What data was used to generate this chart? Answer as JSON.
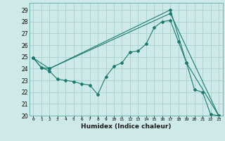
{
  "title": "",
  "xlabel": "Humidex (Indice chaleur)",
  "background_color": "#ceeae8",
  "grid_color": "#aed4d2",
  "line_color": "#1a7a6e",
  "xlim": [
    -0.5,
    23.5
  ],
  "ylim": [
    20,
    29.6
  ],
  "yticks": [
    20,
    21,
    22,
    23,
    24,
    25,
    26,
    27,
    28,
    29
  ],
  "xticks": [
    0,
    1,
    2,
    3,
    4,
    5,
    6,
    7,
    8,
    9,
    10,
    11,
    12,
    13,
    14,
    15,
    16,
    17,
    18,
    19,
    20,
    21,
    22,
    23
  ],
  "series1_x": [
    0,
    1,
    2,
    3,
    4,
    5,
    6,
    7,
    8,
    9,
    10,
    11,
    12,
    13,
    14,
    15,
    16,
    17,
    18,
    19,
    20,
    21,
    22,
    23
  ],
  "series1_y": [
    24.9,
    24.1,
    23.8,
    23.1,
    23.0,
    22.9,
    22.7,
    22.6,
    21.8,
    23.3,
    24.2,
    24.5,
    25.4,
    25.5,
    26.1,
    27.5,
    28.0,
    28.1,
    26.3,
    24.5,
    22.2,
    22.0,
    20.1,
    20.0
  ],
  "series2_x": [
    0,
    1,
    2,
    17,
    23
  ],
  "series2_y": [
    24.9,
    24.1,
    24.0,
    28.7,
    20.0
  ],
  "series3_x": [
    0,
    2,
    17,
    19,
    23
  ],
  "series3_y": [
    24.9,
    24.0,
    29.0,
    24.5,
    20.0
  ]
}
